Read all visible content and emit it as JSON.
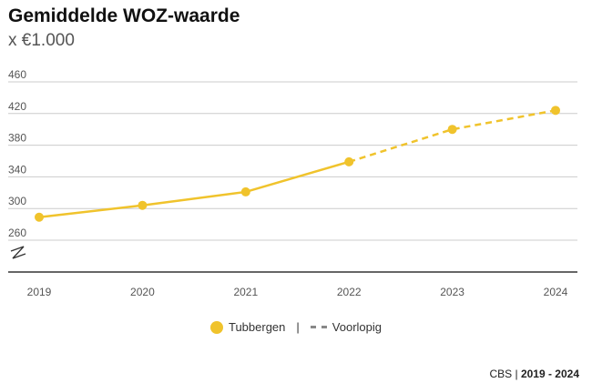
{
  "chart_data": {
    "type": "line",
    "title": "Gemiddelde WOZ-waarde",
    "subtitle": "x €1.000",
    "categories": [
      "2019",
      "2020",
      "2021",
      "2022",
      "2023",
      "2024"
    ],
    "series": [
      {
        "name": "Tubbergen",
        "values": [
          289,
          304,
          321,
          359,
          400,
          424
        ],
        "color": "#f0c32c",
        "provisional_from_index": 3
      }
    ],
    "y_ticks": [
      "460",
      "420",
      "380",
      "340",
      "300",
      "260"
    ],
    "ylim": [
      220,
      460
    ],
    "axis_break": true,
    "grid": true,
    "legend": {
      "position": "bottom-center",
      "series_label": "Tubbergen",
      "separator": "|",
      "provisional_label": "Voorlopig"
    }
  },
  "source": {
    "org": "CBS",
    "separator": "|",
    "period": "2019 - 2024"
  },
  "colors": {
    "series": "#f0c32c",
    "grid": "#cccccc",
    "axis": "#333333",
    "provisional_legend": "#888888"
  }
}
